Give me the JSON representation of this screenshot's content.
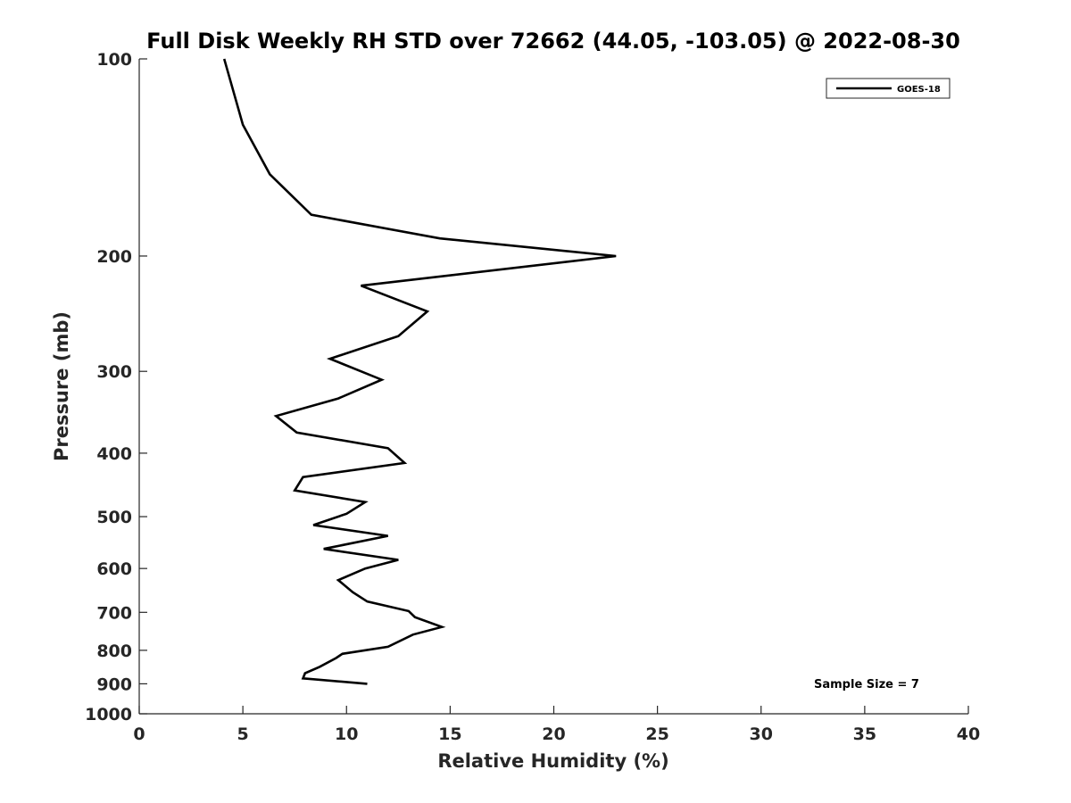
{
  "chart_data": {
    "type": "line",
    "title": "Full Disk Weekly RH STD over 72662 (44.05, -103.05) @ 2022-08-30",
    "xlabel": "Relative Humidity (%)",
    "ylabel": "Pressure (mb)",
    "xlim": [
      0,
      40
    ],
    "ylim": [
      100,
      1000
    ],
    "yscale": "log",
    "yaxis_reversed": true,
    "x_ticks": [
      0,
      5,
      10,
      15,
      20,
      25,
      30,
      35,
      40
    ],
    "y_ticks": [
      100,
      200,
      300,
      400,
      500,
      600,
      700,
      800,
      900,
      1000
    ],
    "grid": false,
    "legend_position": "top-right",
    "series": [
      {
        "name": "GOES-18",
        "color": "#000000",
        "points": [
          {
            "x": 4.1,
            "y": 100
          },
          {
            "x": 5.0,
            "y": 126
          },
          {
            "x": 6.3,
            "y": 150
          },
          {
            "x": 8.3,
            "y": 173
          },
          {
            "x": 14.5,
            "y": 188
          },
          {
            "x": 23.0,
            "y": 200
          },
          {
            "x": 10.7,
            "y": 222
          },
          {
            "x": 13.9,
            "y": 243
          },
          {
            "x": 12.5,
            "y": 265
          },
          {
            "x": 9.2,
            "y": 287
          },
          {
            "x": 11.7,
            "y": 309
          },
          {
            "x": 9.6,
            "y": 330
          },
          {
            "x": 6.6,
            "y": 351
          },
          {
            "x": 7.6,
            "y": 372
          },
          {
            "x": 12.0,
            "y": 393
          },
          {
            "x": 12.8,
            "y": 414
          },
          {
            "x": 7.9,
            "y": 435
          },
          {
            "x": 7.5,
            "y": 456
          },
          {
            "x": 10.9,
            "y": 475
          },
          {
            "x": 10.0,
            "y": 495
          },
          {
            "x": 8.4,
            "y": 515
          },
          {
            "x": 12.0,
            "y": 535
          },
          {
            "x": 8.9,
            "y": 560
          },
          {
            "x": 12.5,
            "y": 582
          },
          {
            "x": 10.9,
            "y": 600
          },
          {
            "x": 9.6,
            "y": 625
          },
          {
            "x": 10.3,
            "y": 652
          },
          {
            "x": 11.0,
            "y": 674
          },
          {
            "x": 13.0,
            "y": 697
          },
          {
            "x": 13.3,
            "y": 712
          },
          {
            "x": 14.6,
            "y": 737
          },
          {
            "x": 13.2,
            "y": 757
          },
          {
            "x": 12.0,
            "y": 790
          },
          {
            "x": 9.8,
            "y": 810
          },
          {
            "x": 9.5,
            "y": 822
          },
          {
            "x": 8.7,
            "y": 848
          },
          {
            "x": 8.0,
            "y": 867
          },
          {
            "x": 7.9,
            "y": 883
          },
          {
            "x": 11.0,
            "y": 900
          }
        ]
      }
    ],
    "annotation": "Sample Size = 7"
  }
}
